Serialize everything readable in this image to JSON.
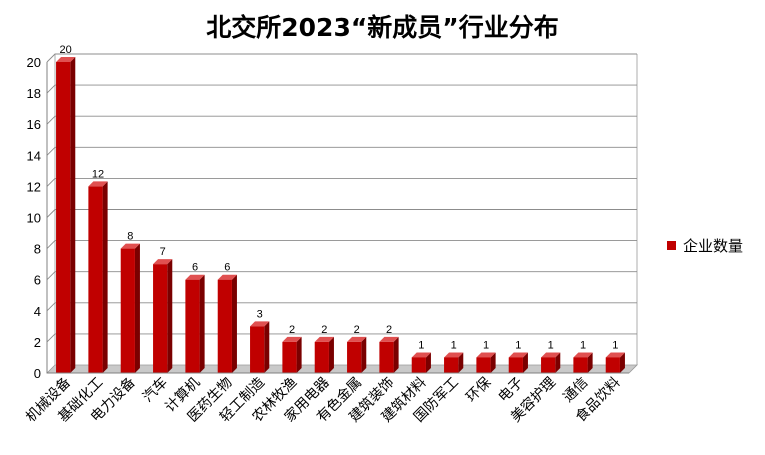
{
  "chart_data": {
    "type": "bar",
    "title": "北交所2023“新成员”行业分布",
    "categories": [
      "机械设备",
      "基础化工",
      "电力设备",
      "汽车",
      "计算机",
      "医药生物",
      "轻工制造",
      "农林牧渔",
      "家用电器",
      "有色金属",
      "建筑装饰",
      "建筑材料",
      "国防军工",
      "环保",
      "电子",
      "美容护理",
      "通信",
      "食品饮料"
    ],
    "series": [
      {
        "name": "企业数量",
        "values": [
          20,
          12,
          8,
          7,
          6,
          6,
          3,
          2,
          2,
          2,
          2,
          1,
          1,
          1,
          1,
          1,
          1,
          1
        ]
      }
    ],
    "yticks": [
      "0",
      "2",
      "4",
      "6",
      "8",
      "10",
      "12",
      "14",
      "16",
      "18",
      "20"
    ],
    "ylim": [
      0,
      20
    ],
    "grid": true,
    "legend_position": "right",
    "bar_color": "#c00000"
  }
}
